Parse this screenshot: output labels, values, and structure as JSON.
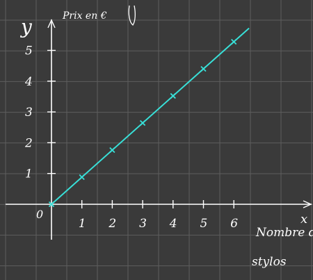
{
  "chart_data": {
    "type": "line",
    "ylabel": "y",
    "ylabel_note": "Prix en €",
    "xlabel": "x",
    "xlabel_note": [
      "Nombre de",
      "stylos"
    ],
    "origin_label": "0",
    "x_ticks": [
      "1",
      "2",
      "3",
      "4",
      "5",
      "6"
    ],
    "y_ticks": [
      "1",
      "2",
      "3",
      "4",
      "5"
    ],
    "xlim": [
      0,
      8.5
    ],
    "ylim": [
      0,
      6
    ],
    "grid": true,
    "series": [
      {
        "x": [
          0,
          1,
          2,
          3,
          4,
          5,
          6
        ],
        "values": [
          0,
          0.88,
          1.76,
          2.64,
          3.52,
          4.4,
          5.28
        ],
        "color": "#38e0d8"
      }
    ],
    "line_extends_to_x": 6.5
  }
}
